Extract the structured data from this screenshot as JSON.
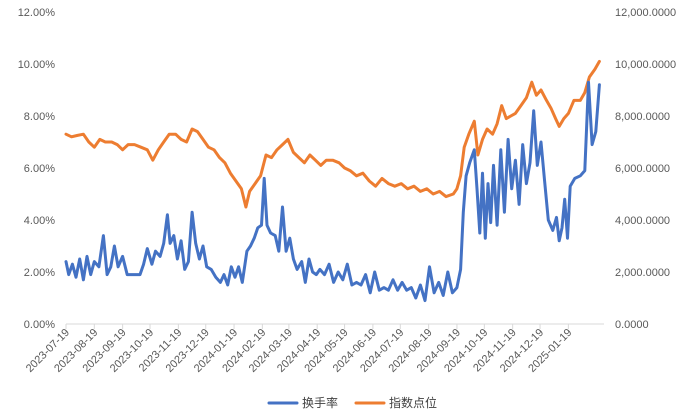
{
  "chart_data": {
    "type": "line",
    "title": "",
    "xlabel": "",
    "y_left": {
      "label": "",
      "lim": [
        0,
        12
      ],
      "ticks": [
        0,
        2,
        4,
        6,
        8,
        10,
        12
      ],
      "tick_labels": [
        "0.00%",
        "2.00%",
        "4.00%",
        "6.00%",
        "8.00%",
        "10.00%",
        "12.00%"
      ]
    },
    "y_right": {
      "label": "",
      "lim": [
        0,
        12000
      ],
      "ticks": [
        0,
        2000,
        4000,
        6000,
        8000,
        10000,
        12000
      ],
      "tick_labels": [
        "0.0000",
        "2,000.0000",
        "4,000.0000",
        "6,000.0000",
        "8,000.0000",
        "10,000.0000",
        "12,000.0000"
      ]
    },
    "x_ticks": [
      "2023-07-19",
      "2023-08-19",
      "2023-09-19",
      "2023-10-19",
      "2023-11-19",
      "2023-12-19",
      "2024-01-19",
      "2024-02-19",
      "2024-03-19",
      "2024-04-19",
      "2024-05-19",
      "2024-06-19",
      "2024-07-19",
      "2024-08-19",
      "2024-09-19",
      "2024-10-19",
      "2024-11-19",
      "2024-12-19",
      "2025-01-19"
    ],
    "x_range": [
      "2023-07-19",
      "2025-02-27"
    ],
    "grid": false,
    "legend_position": "bottom",
    "series": [
      {
        "name": "换手率",
        "axis": "left",
        "color": "#4472C4",
        "points": [
          [
            "2023-07-19",
            2.4
          ],
          [
            "2023-07-22",
            1.9
          ],
          [
            "2023-07-26",
            2.3
          ],
          [
            "2023-07-30",
            1.8
          ],
          [
            "2023-08-03",
            2.5
          ],
          [
            "2023-08-07",
            1.7
          ],
          [
            "2023-08-11",
            2.6
          ],
          [
            "2023-08-15",
            1.9
          ],
          [
            "2023-08-19",
            2.4
          ],
          [
            "2023-08-24",
            2.2
          ],
          [
            "2023-08-29",
            3.4
          ],
          [
            "2023-09-02",
            1.9
          ],
          [
            "2023-09-06",
            2.2
          ],
          [
            "2023-09-10",
            3.0
          ],
          [
            "2023-09-14",
            2.2
          ],
          [
            "2023-09-19",
            2.6
          ],
          [
            "2023-09-24",
            1.9
          ],
          [
            "2023-09-30",
            1.9
          ],
          [
            "2023-10-08",
            1.9
          ],
          [
            "2023-10-12",
            2.3
          ],
          [
            "2023-10-16",
            2.9
          ],
          [
            "2023-10-21",
            2.3
          ],
          [
            "2023-10-25",
            2.8
          ],
          [
            "2023-10-30",
            2.6
          ],
          [
            "2023-11-03",
            3.1
          ],
          [
            "2023-11-07",
            4.2
          ],
          [
            "2023-11-10",
            3.1
          ],
          [
            "2023-11-14",
            3.4
          ],
          [
            "2023-11-18",
            2.5
          ],
          [
            "2023-11-22",
            3.2
          ],
          [
            "2023-11-26",
            2.1
          ],
          [
            "2023-11-30",
            2.4
          ],
          [
            "2023-12-04",
            4.3
          ],
          [
            "2023-12-08",
            3.1
          ],
          [
            "2023-12-12",
            2.5
          ],
          [
            "2023-12-16",
            3.0
          ],
          [
            "2023-12-20",
            2.2
          ],
          [
            "2023-12-25",
            2.1
          ],
          [
            "2023-12-30",
            1.8
          ],
          [
            "2024-01-04",
            1.6
          ],
          [
            "2024-01-08",
            1.9
          ],
          [
            "2024-01-12",
            1.5
          ],
          [
            "2024-01-16",
            2.2
          ],
          [
            "2024-01-20",
            1.8
          ],
          [
            "2024-01-24",
            2.2
          ],
          [
            "2024-01-28",
            1.6
          ],
          [
            "2024-02-02",
            2.8
          ],
          [
            "2024-02-06",
            3.0
          ],
          [
            "2024-02-10",
            3.3
          ],
          [
            "2024-02-14",
            3.7
          ],
          [
            "2024-02-18",
            3.8
          ],
          [
            "2024-02-21",
            5.6
          ],
          [
            "2024-02-24",
            3.8
          ],
          [
            "2024-02-28",
            3.5
          ],
          [
            "2024-03-04",
            3.4
          ],
          [
            "2024-03-08",
            2.8
          ],
          [
            "2024-03-12",
            4.5
          ],
          [
            "2024-03-16",
            2.8
          ],
          [
            "2024-03-20",
            3.3
          ],
          [
            "2024-03-24",
            2.5
          ],
          [
            "2024-03-28",
            2.1
          ],
          [
            "2024-04-02",
            2.4
          ],
          [
            "2024-04-06",
            1.6
          ],
          [
            "2024-04-10",
            2.5
          ],
          [
            "2024-04-14",
            2.0
          ],
          [
            "2024-04-18",
            1.9
          ],
          [
            "2024-04-22",
            2.1
          ],
          [
            "2024-04-27",
            1.9
          ],
          [
            "2024-05-02",
            2.3
          ],
          [
            "2024-05-07",
            1.6
          ],
          [
            "2024-05-12",
            2.0
          ],
          [
            "2024-05-17",
            1.7
          ],
          [
            "2024-05-22",
            2.3
          ],
          [
            "2024-05-27",
            1.5
          ],
          [
            "2024-06-01",
            1.6
          ],
          [
            "2024-06-06",
            1.5
          ],
          [
            "2024-06-11",
            1.9
          ],
          [
            "2024-06-16",
            1.2
          ],
          [
            "2024-06-21",
            2.0
          ],
          [
            "2024-06-26",
            1.3
          ],
          [
            "2024-07-01",
            1.4
          ],
          [
            "2024-07-06",
            1.3
          ],
          [
            "2024-07-11",
            1.7
          ],
          [
            "2024-07-16",
            1.3
          ],
          [
            "2024-07-21",
            1.6
          ],
          [
            "2024-07-26",
            1.3
          ],
          [
            "2024-07-31",
            1.4
          ],
          [
            "2024-08-05",
            1.0
          ],
          [
            "2024-08-10",
            1.5
          ],
          [
            "2024-08-15",
            0.9
          ],
          [
            "2024-08-20",
            2.2
          ],
          [
            "2024-08-25",
            1.2
          ],
          [
            "2024-08-30",
            1.6
          ],
          [
            "2024-09-04",
            1.1
          ],
          [
            "2024-09-09",
            2.0
          ],
          [
            "2024-09-14",
            1.2
          ],
          [
            "2024-09-19",
            1.4
          ],
          [
            "2024-09-23",
            2.1
          ],
          [
            "2024-09-26",
            4.3
          ],
          [
            "2024-09-29",
            5.7
          ],
          [
            "2024-10-03",
            6.2
          ],
          [
            "2024-10-08",
            6.7
          ],
          [
            "2024-10-11",
            5.2
          ],
          [
            "2024-10-14",
            3.5
          ],
          [
            "2024-10-17",
            5.8
          ],
          [
            "2024-10-20",
            3.3
          ],
          [
            "2024-10-23",
            5.4
          ],
          [
            "2024-10-26",
            3.9
          ],
          [
            "2024-10-29",
            6.1
          ],
          [
            "2024-11-02",
            3.8
          ],
          [
            "2024-11-06",
            6.7
          ],
          [
            "2024-11-10",
            4.3
          ],
          [
            "2024-11-14",
            7.1
          ],
          [
            "2024-11-18",
            5.2
          ],
          [
            "2024-11-22",
            6.3
          ],
          [
            "2024-11-26",
            4.6
          ],
          [
            "2024-11-30",
            6.9
          ],
          [
            "2024-12-04",
            5.4
          ],
          [
            "2024-12-08",
            6.2
          ],
          [
            "2024-12-12",
            8.2
          ],
          [
            "2024-12-16",
            6.1
          ],
          [
            "2024-12-20",
            7.0
          ],
          [
            "2024-12-24",
            5.5
          ],
          [
            "2024-12-28",
            4.0
          ],
          [
            "2025-01-02",
            3.6
          ],
          [
            "2025-01-06",
            4.1
          ],
          [
            "2025-01-09",
            3.2
          ],
          [
            "2025-01-12",
            3.7
          ],
          [
            "2025-01-15",
            4.8
          ],
          [
            "2025-01-18",
            3.3
          ],
          [
            "2025-01-21",
            5.3
          ],
          [
            "2025-01-26",
            5.6
          ],
          [
            "2025-02-01",
            5.7
          ],
          [
            "2025-02-06",
            5.9
          ],
          [
            "2025-02-10",
            9.3
          ],
          [
            "2025-02-14",
            6.9
          ],
          [
            "2025-02-18",
            7.4
          ],
          [
            "2025-02-22",
            9.2
          ]
        ]
      },
      {
        "name": "指数点位",
        "axis": "right",
        "color": "#ED7D31",
        "points": [
          [
            "2023-07-19",
            7300
          ],
          [
            "2023-07-25",
            7200
          ],
          [
            "2023-07-31",
            7250
          ],
          [
            "2023-08-07",
            7300
          ],
          [
            "2023-08-13",
            7000
          ],
          [
            "2023-08-19",
            6800
          ],
          [
            "2023-08-25",
            7100
          ],
          [
            "2023-08-31",
            7000
          ],
          [
            "2023-09-07",
            7000
          ],
          [
            "2023-09-13",
            6900
          ],
          [
            "2023-09-19",
            6700
          ],
          [
            "2023-09-25",
            6900
          ],
          [
            "2023-10-02",
            6900
          ],
          [
            "2023-10-09",
            6800
          ],
          [
            "2023-10-16",
            6700
          ],
          [
            "2023-10-22",
            6300
          ],
          [
            "2023-10-28",
            6700
          ],
          [
            "2023-11-03",
            7000
          ],
          [
            "2023-11-09",
            7300
          ],
          [
            "2023-11-16",
            7300
          ],
          [
            "2023-11-22",
            7100
          ],
          [
            "2023-11-28",
            7000
          ],
          [
            "2023-12-04",
            7500
          ],
          [
            "2023-12-10",
            7400
          ],
          [
            "2023-12-16",
            7100
          ],
          [
            "2023-12-22",
            6800
          ],
          [
            "2023-12-28",
            6700
          ],
          [
            "2024-01-03",
            6400
          ],
          [
            "2024-01-09",
            6200
          ],
          [
            "2024-01-15",
            5800
          ],
          [
            "2024-01-21",
            5500
          ],
          [
            "2024-01-27",
            5200
          ],
          [
            "2024-02-01",
            4500
          ],
          [
            "2024-02-05",
            5100
          ],
          [
            "2024-02-11",
            5400
          ],
          [
            "2024-02-17",
            5700
          ],
          [
            "2024-02-23",
            6500
          ],
          [
            "2024-02-29",
            6400
          ],
          [
            "2024-03-06",
            6700
          ],
          [
            "2024-03-12",
            6900
          ],
          [
            "2024-03-18",
            7100
          ],
          [
            "2024-03-24",
            6600
          ],
          [
            "2024-03-30",
            6400
          ],
          [
            "2024-04-05",
            6200
          ],
          [
            "2024-04-11",
            6500
          ],
          [
            "2024-04-17",
            6300
          ],
          [
            "2024-04-23",
            6100
          ],
          [
            "2024-04-29",
            6300
          ],
          [
            "2024-05-06",
            6300
          ],
          [
            "2024-05-13",
            6200
          ],
          [
            "2024-05-19",
            6000
          ],
          [
            "2024-05-25",
            5900
          ],
          [
            "2024-06-01",
            5700
          ],
          [
            "2024-06-08",
            5800
          ],
          [
            "2024-06-15",
            5500
          ],
          [
            "2024-06-22",
            5300
          ],
          [
            "2024-06-29",
            5600
          ],
          [
            "2024-07-06",
            5400
          ],
          [
            "2024-07-13",
            5300
          ],
          [
            "2024-07-20",
            5400
          ],
          [
            "2024-07-27",
            5200
          ],
          [
            "2024-08-03",
            5300
          ],
          [
            "2024-08-10",
            5100
          ],
          [
            "2024-08-17",
            5200
          ],
          [
            "2024-08-24",
            5000
          ],
          [
            "2024-08-31",
            5100
          ],
          [
            "2024-09-07",
            4900
          ],
          [
            "2024-09-15",
            5000
          ],
          [
            "2024-09-19",
            5200
          ],
          [
            "2024-09-23",
            5700
          ],
          [
            "2024-09-27",
            6800
          ],
          [
            "2024-10-02",
            7300
          ],
          [
            "2024-10-08",
            7800
          ],
          [
            "2024-10-12",
            6500
          ],
          [
            "2024-10-17",
            7100
          ],
          [
            "2024-10-22",
            7500
          ],
          [
            "2024-10-28",
            7300
          ],
          [
            "2024-11-02",
            7700
          ],
          [
            "2024-11-07",
            8400
          ],
          [
            "2024-11-12",
            7900
          ],
          [
            "2024-11-17",
            8000
          ],
          [
            "2024-11-22",
            8100
          ],
          [
            "2024-11-28",
            8400
          ],
          [
            "2024-12-04",
            8700
          ],
          [
            "2024-12-10",
            9300
          ],
          [
            "2024-12-15",
            8800
          ],
          [
            "2024-12-20",
            9000
          ],
          [
            "2024-12-26",
            8600
          ],
          [
            "2024-12-31",
            8300
          ],
          [
            "2025-01-05",
            7900
          ],
          [
            "2025-01-09",
            7600
          ],
          [
            "2025-01-14",
            7900
          ],
          [
            "2025-01-19",
            8100
          ],
          [
            "2025-01-25",
            8600
          ],
          [
            "2025-02-01",
            8600
          ],
          [
            "2025-02-06",
            8900
          ],
          [
            "2025-02-11",
            9500
          ],
          [
            "2025-02-17",
            9800
          ],
          [
            "2025-02-22",
            10100
          ]
        ]
      }
    ]
  },
  "legend": {
    "items": [
      {
        "label": "换手率",
        "color": "#4472C4"
      },
      {
        "label": "指数点位",
        "color": "#ED7D31"
      }
    ]
  }
}
